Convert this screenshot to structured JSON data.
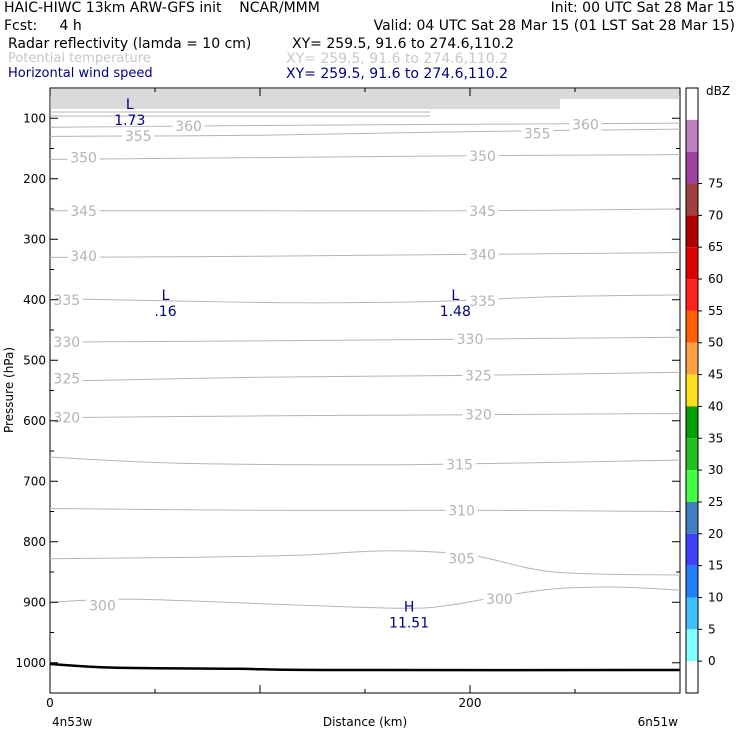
{
  "header": {
    "line1_left": "HAIC-HIWC 13km ARW-GFS init    NCAR/MMM",
    "line1_right": "Init: 00 UTC Sat 28 Mar 15",
    "line2_left": "Fcst:     4 h",
    "line2_right": "Valid: 04 UTC Sat 28 Mar 15 (01 LST Sat 28 Mar 15)",
    "fields": [
      {
        "name": "Radar reflectivity (lamda = 10 cm)",
        "xy": "XY= 259.5, 91.6 to 274.6,110.2",
        "color": "#000000"
      },
      {
        "name": "Potential temperature",
        "xy": "XY= 259.5, 91.6 to 274.6,110.2",
        "color": "#c0c0c0"
      },
      {
        "name": "Horizontal wind speed",
        "xy": "XY= 259.5, 91.6 to 274.6,110.2",
        "color": "#000080"
      }
    ]
  },
  "chart_data": {
    "type": "contour",
    "xlabel": "Distance (km)",
    "ylabel": "Pressure (hPa)",
    "xlim": [
      0,
      300
    ],
    "ylim": [
      50,
      1050
    ],
    "y_reversed": true,
    "x_ticks": [
      0,
      200
    ],
    "y_ticks": [
      100,
      200,
      300,
      400,
      500,
      600,
      700,
      800,
      900,
      1000
    ],
    "x_endpoint_labels": [
      "4n53w",
      "6n51w"
    ],
    "theta_contour_color": "#b4b4b4",
    "theta_contours": [
      {
        "level": 300,
        "label": "300",
        "points": [
          [
            0,
            900
          ],
          [
            40,
            895
          ],
          [
            120,
            905
          ],
          [
            170,
            910
          ],
          [
            190,
            905
          ],
          [
            215,
            890
          ],
          [
            240,
            878
          ],
          [
            270,
            875
          ],
          [
            300,
            880
          ]
        ]
      },
      {
        "level": 305,
        "label": "305",
        "points": [
          [
            0,
            828
          ],
          [
            60,
            826
          ],
          [
            120,
            822
          ],
          [
            160,
            815
          ],
          [
            200,
            822
          ],
          [
            240,
            850
          ],
          [
            300,
            855
          ]
        ]
      },
      {
        "level": 310,
        "label": "310",
        "points": [
          [
            0,
            745
          ],
          [
            100,
            748
          ],
          [
            200,
            748
          ],
          [
            300,
            750
          ]
        ]
      },
      {
        "level": 315,
        "label": "315",
        "points": [
          [
            0,
            660
          ],
          [
            60,
            670
          ],
          [
            150,
            673
          ],
          [
            220,
            670
          ],
          [
            300,
            665
          ]
        ]
      },
      {
        "level": 320,
        "label": "320",
        "points": [
          [
            0,
            595
          ],
          [
            100,
            592
          ],
          [
            200,
            590
          ],
          [
            300,
            588
          ]
        ]
      },
      {
        "level": 325,
        "label": "325",
        "points": [
          [
            0,
            535
          ],
          [
            100,
            528
          ],
          [
            200,
            525
          ],
          [
            300,
            520
          ]
        ]
      },
      {
        "level": 330,
        "label": "330",
        "points": [
          [
            0,
            470
          ],
          [
            100,
            468
          ],
          [
            200,
            465
          ],
          [
            300,
            462
          ]
        ]
      },
      {
        "level": 335,
        "label": "335",
        "points": [
          [
            0,
            398
          ],
          [
            60,
            402
          ],
          [
            120,
            405
          ],
          [
            180,
            403
          ],
          [
            240,
            395
          ],
          [
            300,
            392
          ]
        ]
      },
      {
        "level": 340,
        "label": "340",
        "points": [
          [
            0,
            330
          ],
          [
            100,
            328
          ],
          [
            200,
            325
          ],
          [
            300,
            322
          ]
        ]
      },
      {
        "level": 345,
        "label": "345",
        "points": [
          [
            0,
            253
          ],
          [
            100,
            253
          ],
          [
            200,
            253
          ],
          [
            300,
            250
          ]
        ]
      },
      {
        "level": 350,
        "label": "350",
        "points": [
          [
            0,
            168
          ],
          [
            100,
            165
          ],
          [
            200,
            162
          ],
          [
            300,
            160
          ]
        ]
      },
      {
        "level": 355,
        "label": "355",
        "points": [
          [
            0,
            130
          ],
          [
            100,
            128
          ],
          [
            200,
            122
          ],
          [
            300,
            118
          ]
        ]
      },
      {
        "level": 360,
        "label": "360",
        "points": [
          [
            0,
            115
          ],
          [
            100,
            112
          ],
          [
            200,
            110
          ],
          [
            300,
            108
          ]
        ]
      }
    ],
    "theta_labels": [
      {
        "text": "300",
        "x": 25,
        "p": 905
      },
      {
        "text": "300",
        "x": 214,
        "p": 895
      },
      {
        "text": "305",
        "x": 196,
        "p": 828
      },
      {
        "text": "310",
        "x": 196,
        "p": 748
      },
      {
        "text": "315",
        "x": 195,
        "p": 672
      },
      {
        "text": "320",
        "x": 8,
        "p": 595
      },
      {
        "text": "320",
        "x": 204,
        "p": 590
      },
      {
        "text": "325",
        "x": 8,
        "p": 530
      },
      {
        "text": "325",
        "x": 204,
        "p": 525
      },
      {
        "text": "330",
        "x": 8,
        "p": 470
      },
      {
        "text": "330",
        "x": 200,
        "p": 465
      },
      {
        "text": "335",
        "x": 8,
        "p": 400
      },
      {
        "text": "335",
        "x": 206,
        "p": 402
      },
      {
        "text": "340",
        "x": 16,
        "p": 328
      },
      {
        "text": "340",
        "x": 206,
        "p": 325
      },
      {
        "text": "345",
        "x": 16,
        "p": 253
      },
      {
        "text": "345",
        "x": 206,
        "p": 253
      },
      {
        "text": "350",
        "x": 16,
        "p": 165
      },
      {
        "text": "350",
        "x": 206,
        "p": 162
      },
      {
        "text": "355",
        "x": 42,
        "p": 129
      },
      {
        "text": "355",
        "x": 232,
        "p": 125
      },
      {
        "text": "360",
        "x": 66,
        "p": 113
      },
      {
        "text": "360",
        "x": 255,
        "p": 110
      }
    ],
    "wind_extrema": [
      {
        "symbol": "L",
        "value": "1.73",
        "x": 38,
        "p": 85
      },
      {
        "symbol": "L",
        "value": ".16",
        "x": 55,
        "p": 400
      },
      {
        "symbol": "L",
        "value": "1.48",
        "x": 193,
        "p": 400
      },
      {
        "symbol": "H",
        "value": "11.51",
        "x": 171,
        "p": 915
      }
    ],
    "terrain_line": [
      [
        0,
        1002
      ],
      [
        30,
        1008
      ],
      [
        90,
        1010
      ],
      [
        130,
        1012
      ],
      [
        300,
        1012
      ]
    ],
    "colorbar": {
      "unit": "dBZ",
      "levels": [
        0,
        5,
        10,
        15,
        20,
        25,
        30,
        35,
        40,
        45,
        50,
        55,
        60,
        65,
        70,
        75
      ],
      "colors": [
        "#ffffff",
        "#80ffff",
        "#40c0ff",
        "#2080ff",
        "#4040ff",
        "#4080c0",
        "#40ff40",
        "#20c020",
        "#00a000",
        "#ffe020",
        "#ffa040",
        "#ff6000",
        "#ff2020",
        "#e00000",
        "#b00000",
        "#a04040",
        "#a040a0",
        "#c080c0",
        "#ffffff"
      ]
    }
  }
}
